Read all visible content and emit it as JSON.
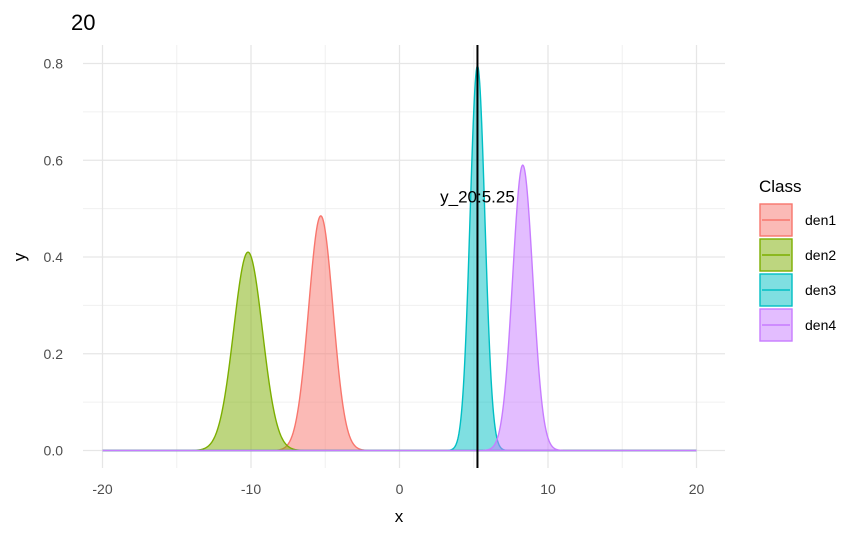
{
  "chart_data": {
    "type": "area",
    "title": "20",
    "xlabel": "x",
    "ylabel": "y",
    "xlim": [
      -20,
      20
    ],
    "ylim": [
      0,
      0.8
    ],
    "x_ticks": [
      -20,
      -10,
      0,
      10,
      20
    ],
    "x_tick_labels": [
      "-20",
      "-10",
      "0",
      "10",
      "20"
    ],
    "y_ticks": [
      0,
      0.2,
      0.4,
      0.6,
      0.8
    ],
    "y_tick_labels": [
      "0.0",
      "0.2",
      "0.4",
      "0.6",
      "0.8"
    ],
    "grid": true,
    "legend": {
      "title": "Class",
      "position": "right"
    },
    "series": [
      {
        "name": "den1",
        "mean": -5.3,
        "sd": 0.82,
        "peak": 0.485,
        "color": "#F8766D"
      },
      {
        "name": "den2",
        "mean": -10.2,
        "sd": 0.97,
        "peak": 0.41,
        "color": "#7CAE00"
      },
      {
        "name": "den3",
        "mean": 5.25,
        "sd": 0.5,
        "peak": 0.795,
        "color": "#00BFC4"
      },
      {
        "name": "den4",
        "mean": 8.3,
        "sd": 0.68,
        "peak": 0.59,
        "color": "#C77CFF"
      }
    ],
    "vline": {
      "x": 5.25
    },
    "annotation": {
      "text": "y_20:5.25",
      "x": 5.25,
      "y": 0.525
    }
  }
}
